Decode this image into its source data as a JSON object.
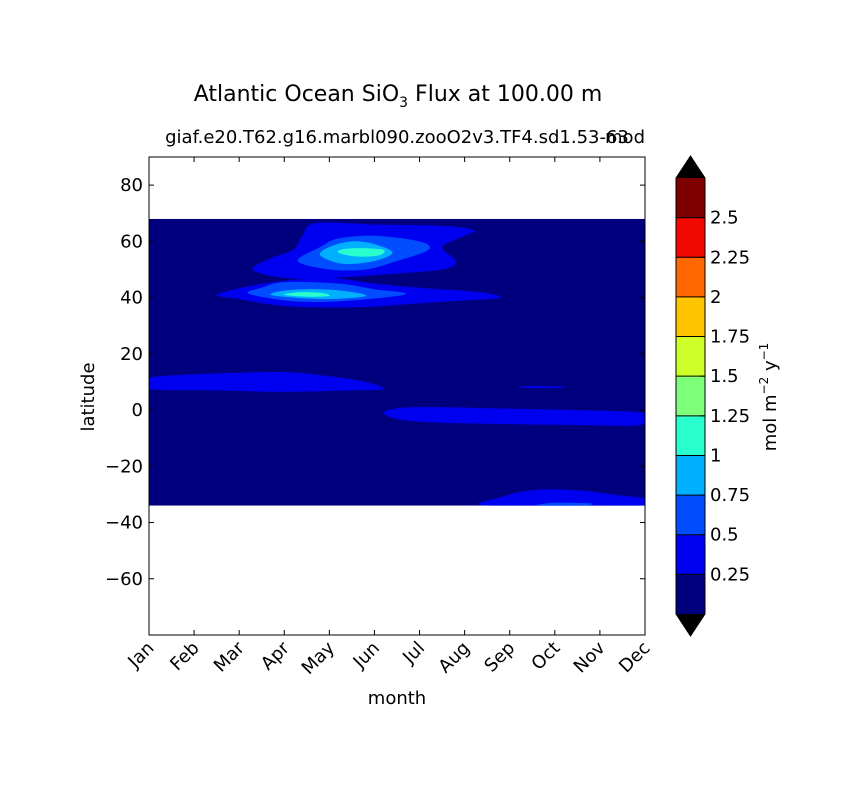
{
  "chart_data": {
    "type": "contourf",
    "title_prefix": "Atlantic Ocean SiO",
    "title_sub": "3",
    "title_suffix": "  Flux at 100.00 m",
    "subtitle": "giaf.e20.T62.g16.marbl090.zooO2v3.TF4.sd1.53-63",
    "subtitle_right": "mod",
    "xlabel": "month",
    "ylabel": "latitude",
    "x_categories": [
      "Jan",
      "Feb",
      "Mar",
      "Apr",
      "May",
      "Jun",
      "Jul",
      "Aug",
      "Sep",
      "Oct",
      "Nov",
      "Dec"
    ],
    "xlim": [
      0,
      11
    ],
    "ylim": [
      -80,
      90
    ],
    "y_ticks": [
      80,
      60,
      40,
      20,
      0,
      -20,
      -40,
      -60
    ],
    "y_tick_labels": [
      "80",
      "60",
      "40",
      "20",
      "0",
      "−20",
      "−40",
      "−60"
    ],
    "data_extent_lat": [
      -34,
      68
    ],
    "levels": [
      0,
      0.25,
      0.5,
      0.75,
      1,
      1.25,
      1.5,
      1.75,
      2,
      2.25,
      2.5,
      2.75
    ],
    "level_colors": [
      "#00007f",
      "#0000f1",
      "#004cff",
      "#00b0ff",
      "#29ffce",
      "#7dff7a",
      "#ceff29",
      "#ffc400",
      "#ff6800",
      "#f10800",
      "#7f0000"
    ],
    "extend_colors": {
      "under": "#000000",
      "over": "#000000"
    },
    "colorbar": {
      "label_main": "mol m",
      "label_exp1": "−2",
      "label_mid": " y",
      "label_exp2": "−1",
      "tick_values": [
        0.25,
        0.5,
        0.75,
        1,
        1.25,
        1.5,
        1.75,
        2,
        2.25,
        2.5
      ],
      "tick_labels": [
        "0.25",
        "0.5",
        "0.75",
        "1",
        "1.25",
        "1.5",
        "1.75",
        "2",
        "2.25",
        "2.5"
      ]
    },
    "features": [
      {
        "name": "north-atlantic-bloom-40n-outer",
        "level_index": 1,
        "points": [
          [
            1.5,
            41
          ],
          [
            2,
            39.5
          ],
          [
            3,
            37
          ],
          [
            4.5,
            36.5
          ],
          [
            6,
            38
          ],
          [
            7,
            39
          ],
          [
            7.8,
            40
          ],
          [
            7.3,
            42
          ],
          [
            6,
            43.5
          ],
          [
            5,
            45
          ],
          [
            4,
            47
          ],
          [
            3,
            46
          ],
          [
            2.2,
            44
          ]
        ]
      },
      {
        "name": "north-atlantic-bloom-40n-mid",
        "level_index": 2,
        "points": [
          [
            2.2,
            41.5
          ],
          [
            3,
            39
          ],
          [
            4,
            38.5
          ],
          [
            5.2,
            40
          ],
          [
            5.7,
            41.5
          ],
          [
            5,
            43
          ],
          [
            4.2,
            45
          ],
          [
            3,
            45.5
          ],
          [
            2.5,
            43.5
          ]
        ]
      },
      {
        "name": "north-atlantic-bloom-40n-inner",
        "level_index": 3,
        "points": [
          [
            2.7,
            41
          ],
          [
            3.2,
            40
          ],
          [
            4,
            39.5
          ],
          [
            4.8,
            40.5
          ],
          [
            4.5,
            42
          ],
          [
            3.8,
            43
          ],
          [
            3,
            42.5
          ]
        ]
      },
      {
        "name": "north-atlantic-bloom-40n-core",
        "level_index": 4,
        "points": [
          [
            3,
            41
          ],
          [
            3.5,
            40.3
          ],
          [
            4,
            40.6
          ],
          [
            3.8,
            41.7
          ],
          [
            3.3,
            41.9
          ]
        ]
      },
      {
        "name": "north-atlantic-bloom-55n-outer",
        "level_index": 1,
        "points": [
          [
            2.3,
            50
          ],
          [
            3,
            47
          ],
          [
            4,
            47
          ],
          [
            5,
            48
          ],
          [
            6.5,
            50
          ],
          [
            6.8,
            53
          ],
          [
            6.5,
            58
          ],
          [
            7,
            62
          ],
          [
            7.2,
            64
          ],
          [
            6.5,
            65.5
          ],
          [
            5,
            66
          ],
          [
            3.7,
            66.5
          ],
          [
            3.4,
            62
          ],
          [
            3.2,
            57
          ],
          [
            2.7,
            54
          ]
        ]
      },
      {
        "name": "north-atlantic-bloom-55n-mid",
        "level_index": 2,
        "points": [
          [
            3.3,
            53
          ],
          [
            4,
            50
          ],
          [
            4.8,
            50
          ],
          [
            5.5,
            53
          ],
          [
            6.2,
            57
          ],
          [
            6,
            60
          ],
          [
            5,
            62
          ],
          [
            4.2,
            61
          ],
          [
            3.8,
            58
          ]
        ]
      },
      {
        "name": "north-atlantic-bloom-55n-inner",
        "level_index": 3,
        "points": [
          [
            3.8,
            55
          ],
          [
            4.3,
            52
          ],
          [
            5,
            53
          ],
          [
            5.4,
            56
          ],
          [
            5,
            59
          ],
          [
            4.5,
            60
          ],
          [
            4,
            58
          ]
        ]
      },
      {
        "name": "north-atlantic-bloom-55n-core",
        "level_index": 4,
        "points": [
          [
            4.2,
            56
          ],
          [
            4.6,
            54.6
          ],
          [
            5.1,
            55
          ],
          [
            5.2,
            57
          ],
          [
            4.7,
            57.6
          ],
          [
            4.3,
            57.2
          ]
        ]
      },
      {
        "name": "tropical-band-10n",
        "level_index": 1,
        "points": [
          [
            0,
            7.5
          ],
          [
            1.5,
            7
          ],
          [
            3,
            6.5
          ],
          [
            4.5,
            7
          ],
          [
            5.2,
            7.5
          ],
          [
            4.8,
            10
          ],
          [
            4,
            12
          ],
          [
            3,
            13.5
          ],
          [
            1.5,
            13
          ],
          [
            0,
            11.5
          ]
        ]
      },
      {
        "name": "equatorial-band",
        "level_index": 1,
        "points": [
          [
            5.2,
            -1
          ],
          [
            5.6,
            -3.5
          ],
          [
            6.5,
            -4.5
          ],
          [
            8,
            -5
          ],
          [
            9.5,
            -5.3
          ],
          [
            10.8,
            -5.5
          ],
          [
            11,
            -3.5
          ],
          [
            11,
            -1
          ],
          [
            9.5,
            0
          ],
          [
            8,
            0.5
          ],
          [
            6.5,
            1
          ],
          [
            5.6,
            0.8
          ]
        ]
      },
      {
        "name": "atlantic-sliver-8n",
        "level_index": 1,
        "points": [
          [
            8.2,
            8
          ],
          [
            9,
            7.8
          ],
          [
            9.2,
            8.3
          ],
          [
            8.4,
            8.5
          ]
        ]
      },
      {
        "name": "south-subtropical-band",
        "level_index": 1,
        "points": [
          [
            7.5,
            -34
          ],
          [
            7.8,
            -31
          ],
          [
            8.5,
            -28.5
          ],
          [
            9.5,
            -28.5
          ],
          [
            10.5,
            -30.5
          ],
          [
            11,
            -31.5
          ],
          [
            11,
            -34
          ]
        ]
      },
      {
        "name": "south-subtropical-inner",
        "level_index": 2,
        "points": [
          [
            8.6,
            -34
          ],
          [
            9,
            -33
          ],
          [
            9.8,
            -33.2
          ],
          [
            9.6,
            -34
          ]
        ]
      }
    ]
  }
}
